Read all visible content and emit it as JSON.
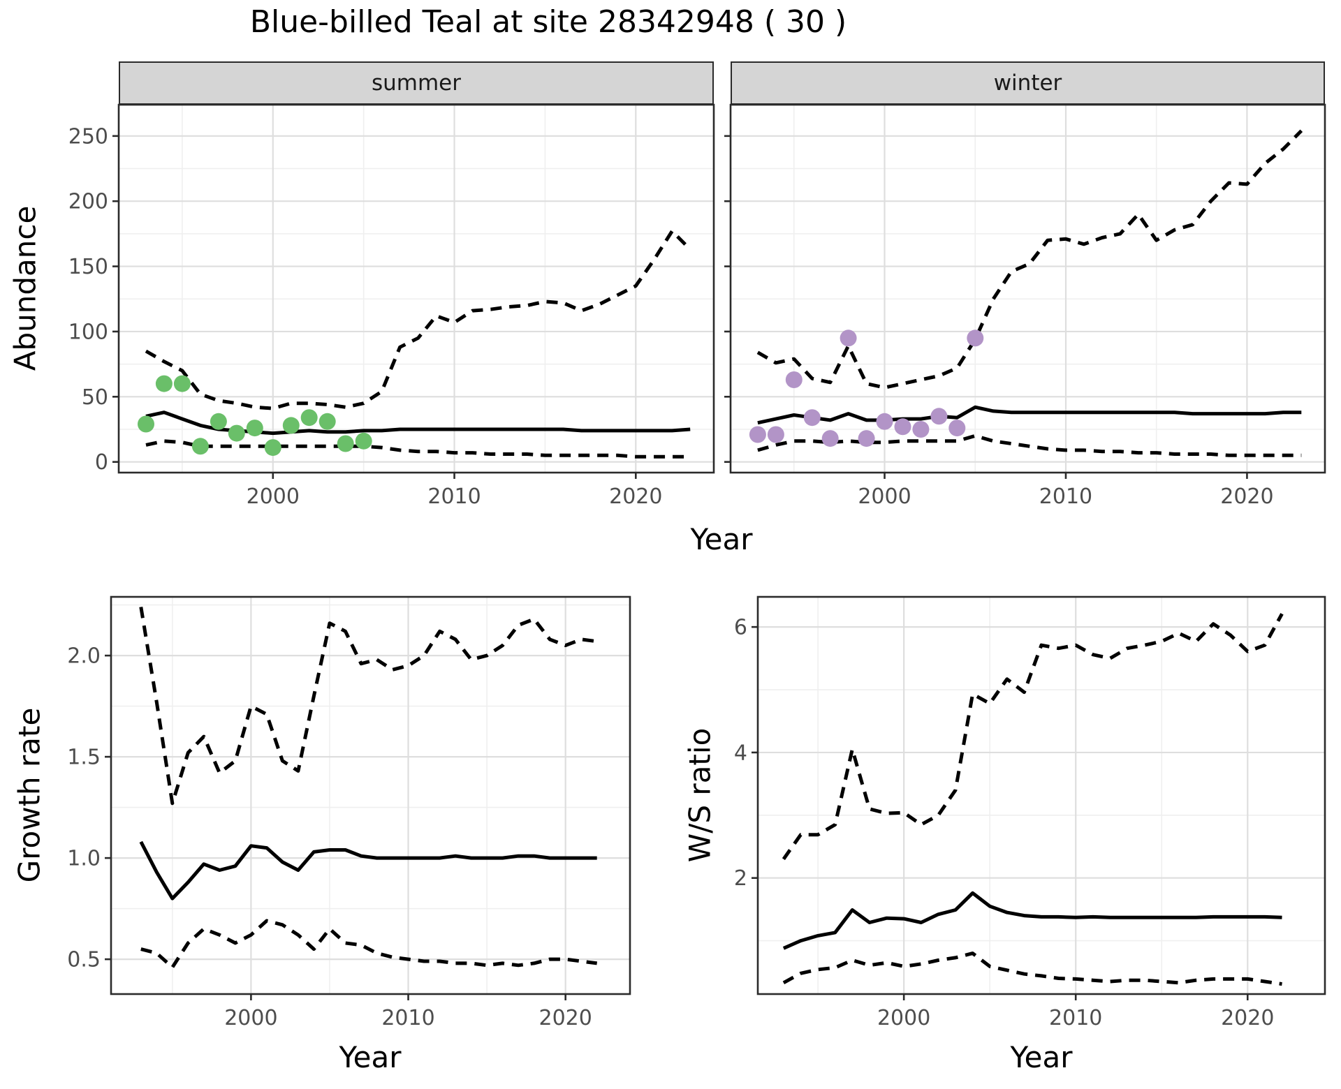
{
  "title": "Blue-billed Teal at site 28342948 ( 30 )",
  "colors": {
    "line": "#000000",
    "summer_points": "#6abf69",
    "winter_points": "#b294c7",
    "grid_major": "#dedede",
    "grid_minor": "#efefef",
    "panel_border": "#2b2b2b",
    "tick_label": "#4d4d4d",
    "strip_fill": "#d5d5d5"
  },
  "chart_data": [
    {
      "id": "abundance-summer",
      "type": "line",
      "facet_label": "summer",
      "ylabel": "Abundance",
      "xlabel": "Year",
      "xlim": [
        1991.5,
        2024.3
      ],
      "ylim": [
        -8.2,
        274
      ],
      "xticks": [
        {
          "v": 2000,
          "label": "2000"
        },
        {
          "v": 2010,
          "label": "2010"
        },
        {
          "v": 2020,
          "label": "2020"
        }
      ],
      "yticks": [
        {
          "v": 0,
          "label": "0"
        },
        {
          "v": 50,
          "label": "50"
        },
        {
          "v": 100,
          "label": "100"
        },
        {
          "v": 150,
          "label": "150"
        },
        {
          "v": 200,
          "label": "200"
        },
        {
          "v": 250,
          "label": "250"
        }
      ],
      "minor_x": [
        1995,
        2005,
        2015
      ],
      "minor_y": [
        25,
        75,
        125,
        175,
        225
      ],
      "grid": true,
      "legend": "none",
      "x": [
        1993,
        1994,
        1995,
        1996,
        1997,
        1998,
        1999,
        2000,
        2001,
        2002,
        2003,
        2004,
        2005,
        2006,
        2007,
        2008,
        2009,
        2010,
        2011,
        2012,
        2013,
        2014,
        2015,
        2016,
        2017,
        2018,
        2019,
        2020,
        2021,
        2022,
        2023
      ],
      "series": [
        {
          "name": "median",
          "style": "solid",
          "values": [
            35,
            38,
            33,
            28,
            25,
            24,
            23,
            22,
            23,
            24,
            23,
            23,
            24,
            24,
            25,
            25,
            25,
            25,
            25,
            25,
            25,
            25,
            25,
            25,
            24,
            24,
            24,
            24,
            24,
            24,
            25
          ]
        },
        {
          "name": "upper CI",
          "style": "dashed",
          "values": [
            85,
            77,
            70,
            52,
            47,
            45,
            42,
            41,
            45,
            45,
            44,
            42,
            45,
            54,
            88,
            95,
            112,
            107,
            116,
            117,
            119,
            120,
            123,
            122,
            116,
            121,
            128,
            135,
            155,
            177,
            163
          ]
        },
        {
          "name": "lower CI",
          "style": "dashed",
          "values": [
            13,
            16,
            15,
            12,
            12,
            12,
            12,
            12,
            12,
            12,
            12,
            12,
            12,
            11,
            9,
            8,
            8,
            7,
            7,
            6,
            6,
            6,
            5,
            5,
            5,
            5,
            5,
            4,
            4,
            4,
            4
          ]
        }
      ],
      "points": {
        "name": "observed-counts-summer",
        "color": "#6abf69",
        "x": [
          1993,
          1994,
          1995,
          1996,
          1997,
          1998,
          1999,
          2000,
          2001,
          2002,
          2003,
          2004,
          2005
        ],
        "values": [
          29,
          60,
          60,
          12,
          31,
          22,
          26,
          11,
          28,
          34,
          31,
          14,
          16
        ]
      }
    },
    {
      "id": "abundance-winter",
      "type": "line",
      "facet_label": "winter",
      "ylabel": "Abundance",
      "xlabel": "Year",
      "xlim": [
        1991.5,
        2024.3
      ],
      "ylim": [
        -8.2,
        274
      ],
      "xticks": [
        {
          "v": 2000,
          "label": "2000"
        },
        {
          "v": 2010,
          "label": "2010"
        },
        {
          "v": 2020,
          "label": "2020"
        }
      ],
      "yticks": [
        {
          "v": 0,
          "label": "0"
        },
        {
          "v": 50,
          "label": "50"
        },
        {
          "v": 100,
          "label": "100"
        },
        {
          "v": 150,
          "label": "150"
        },
        {
          "v": 200,
          "label": "200"
        },
        {
          "v": 250,
          "label": "250"
        }
      ],
      "minor_x": [
        1995,
        2005,
        2015
      ],
      "minor_y": [
        25,
        75,
        125,
        175,
        225
      ],
      "grid": true,
      "legend": "none",
      "show_ytick_labels": false,
      "x": [
        1993,
        1994,
        1995,
        1996,
        1997,
        1998,
        1999,
        2000,
        2001,
        2002,
        2003,
        2004,
        2005,
        2006,
        2007,
        2008,
        2009,
        2010,
        2011,
        2012,
        2013,
        2014,
        2015,
        2016,
        2017,
        2018,
        2019,
        2020,
        2021,
        2022,
        2023
      ],
      "series": [
        {
          "name": "median",
          "style": "solid",
          "values": [
            30,
            33,
            36,
            34,
            32,
            37,
            32,
            32,
            33,
            33,
            35,
            34,
            42,
            39,
            38,
            38,
            38,
            38,
            38,
            38,
            38,
            38,
            38,
            38,
            37,
            37,
            37,
            37,
            37,
            38,
            38
          ]
        },
        {
          "name": "upper CI",
          "style": "dashed",
          "values": [
            84,
            76,
            79,
            64,
            61,
            89,
            60,
            57,
            60,
            63,
            66,
            72,
            94,
            125,
            146,
            152,
            170,
            171,
            167,
            172,
            175,
            190,
            170,
            178,
            182,
            200,
            214,
            213,
            229,
            240,
            254
          ]
        },
        {
          "name": "lower CI",
          "style": "dashed",
          "values": [
            9,
            13,
            16,
            16,
            15,
            16,
            15,
            15,
            16,
            16,
            16,
            16,
            20,
            16,
            14,
            12,
            10,
            9,
            9,
            8,
            8,
            7,
            7,
            6,
            6,
            6,
            5,
            5,
            5,
            5,
            5
          ]
        }
      ],
      "points": {
        "name": "observed-counts-winter",
        "color": "#b294c7",
        "x": [
          1993,
          1994,
          1995,
          1996,
          1997,
          1998,
          1999,
          2000,
          2001,
          2002,
          2003,
          2004,
          2005
        ],
        "values": [
          21,
          21,
          63,
          34,
          18,
          95,
          18,
          31,
          27,
          25,
          35,
          26,
          95
        ]
      }
    },
    {
      "id": "growth-rate",
      "type": "line",
      "ylabel": "Growth rate",
      "xlabel": "Year",
      "xlim": [
        1991.1,
        2024.1
      ],
      "ylim": [
        0.328,
        2.29
      ],
      "xticks": [
        {
          "v": 2000,
          "label": "2000"
        },
        {
          "v": 2010,
          "label": "2010"
        },
        {
          "v": 2020,
          "label": "2020"
        }
      ],
      "yticks": [
        {
          "v": 0.5,
          "label": "0.5"
        },
        {
          "v": 1.0,
          "label": "1.0"
        },
        {
          "v": 1.5,
          "label": "1.5"
        },
        {
          "v": 2.0,
          "label": "2.0"
        }
      ],
      "minor_x": [
        1995,
        2005,
        2015
      ],
      "minor_y": [
        0.75,
        1.25,
        1.75,
        2.25
      ],
      "grid": true,
      "legend": "none",
      "x": [
        1993,
        1994,
        1995,
        1996,
        1997,
        1998,
        1999,
        2000,
        2001,
        2002,
        2003,
        2004,
        2005,
        2006,
        2007,
        2008,
        2009,
        2010,
        2011,
        2012,
        2013,
        2014,
        2015,
        2016,
        2017,
        2018,
        2019,
        2020,
        2021,
        2022
      ],
      "series": [
        {
          "name": "median",
          "style": "solid",
          "values": [
            1.08,
            0.93,
            0.8,
            0.88,
            0.97,
            0.94,
            0.96,
            1.06,
            1.05,
            0.98,
            0.94,
            1.03,
            1.04,
            1.04,
            1.01,
            1.0,
            1.0,
            1.0,
            1.0,
            1.0,
            1.01,
            1.0,
            1.0,
            1.0,
            1.01,
            1.01,
            1.0,
            1.0,
            1.0,
            1.0
          ]
        },
        {
          "name": "upper CI",
          "style": "dashed",
          "values": [
            2.24,
            1.77,
            1.27,
            1.52,
            1.6,
            1.42,
            1.48,
            1.75,
            1.71,
            1.48,
            1.43,
            1.8,
            2.16,
            2.12,
            1.96,
            1.98,
            1.93,
            1.95,
            2.0,
            2.12,
            2.08,
            1.98,
            2.0,
            2.05,
            2.15,
            2.18,
            2.08,
            2.05,
            2.08,
            2.07
          ]
        },
        {
          "name": "lower CI",
          "style": "dashed",
          "values": [
            0.55,
            0.53,
            0.46,
            0.58,
            0.65,
            0.62,
            0.58,
            0.62,
            0.69,
            0.67,
            0.62,
            0.55,
            0.65,
            0.58,
            0.57,
            0.53,
            0.51,
            0.5,
            0.49,
            0.49,
            0.48,
            0.48,
            0.47,
            0.48,
            0.47,
            0.48,
            0.5,
            0.5,
            0.49,
            0.48
          ]
        }
      ]
    },
    {
      "id": "ws-ratio",
      "type": "line",
      "ylabel": "W/S ratio",
      "xlabel": "Year",
      "xlim": [
        1991.5,
        2024.5
      ],
      "ylim": [
        0.15,
        6.48
      ],
      "xticks": [
        {
          "v": 2000,
          "label": "2000"
        },
        {
          "v": 2010,
          "label": "2010"
        },
        {
          "v": 2020,
          "label": "2020"
        }
      ],
      "yticks": [
        {
          "v": 2,
          "label": "2"
        },
        {
          "v": 4,
          "label": "4"
        },
        {
          "v": 6,
          "label": "6"
        }
      ],
      "minor_x": [
        1995,
        2005,
        2015
      ],
      "minor_y": [
        1,
        3,
        5
      ],
      "grid": true,
      "legend": "none",
      "x": [
        1993,
        1994,
        1995,
        1996,
        1997,
        1998,
        1999,
        2000,
        2001,
        2002,
        2003,
        2004,
        2005,
        2006,
        2007,
        2008,
        2009,
        2010,
        2011,
        2012,
        2013,
        2014,
        2015,
        2016,
        2017,
        2018,
        2019,
        2020,
        2021,
        2022
      ],
      "series": [
        {
          "name": "median",
          "style": "solid",
          "values": [
            0.88,
            1.0,
            1.08,
            1.13,
            1.49,
            1.29,
            1.36,
            1.35,
            1.29,
            1.42,
            1.49,
            1.76,
            1.55,
            1.45,
            1.4,
            1.38,
            1.38,
            1.37,
            1.38,
            1.37,
            1.37,
            1.37,
            1.37,
            1.37,
            1.37,
            1.38,
            1.38,
            1.38,
            1.38,
            1.37
          ]
        },
        {
          "name": "upper CI",
          "style": "dashed",
          "values": [
            2.3,
            2.69,
            2.69,
            2.85,
            4.05,
            3.1,
            3.03,
            3.04,
            2.85,
            3.0,
            3.4,
            4.93,
            4.78,
            5.17,
            4.96,
            5.71,
            5.66,
            5.71,
            5.56,
            5.5,
            5.66,
            5.71,
            5.77,
            5.9,
            5.77,
            6.05,
            5.87,
            5.61,
            5.71,
            6.21
          ]
        },
        {
          "name": "lower CI",
          "style": "dashed",
          "values": [
            0.33,
            0.48,
            0.54,
            0.57,
            0.69,
            0.61,
            0.65,
            0.59,
            0.63,
            0.69,
            0.73,
            0.8,
            0.59,
            0.53,
            0.47,
            0.44,
            0.4,
            0.39,
            0.37,
            0.35,
            0.37,
            0.37,
            0.35,
            0.33,
            0.37,
            0.39,
            0.39,
            0.39,
            0.35,
            0.31
          ]
        }
      ]
    }
  ]
}
